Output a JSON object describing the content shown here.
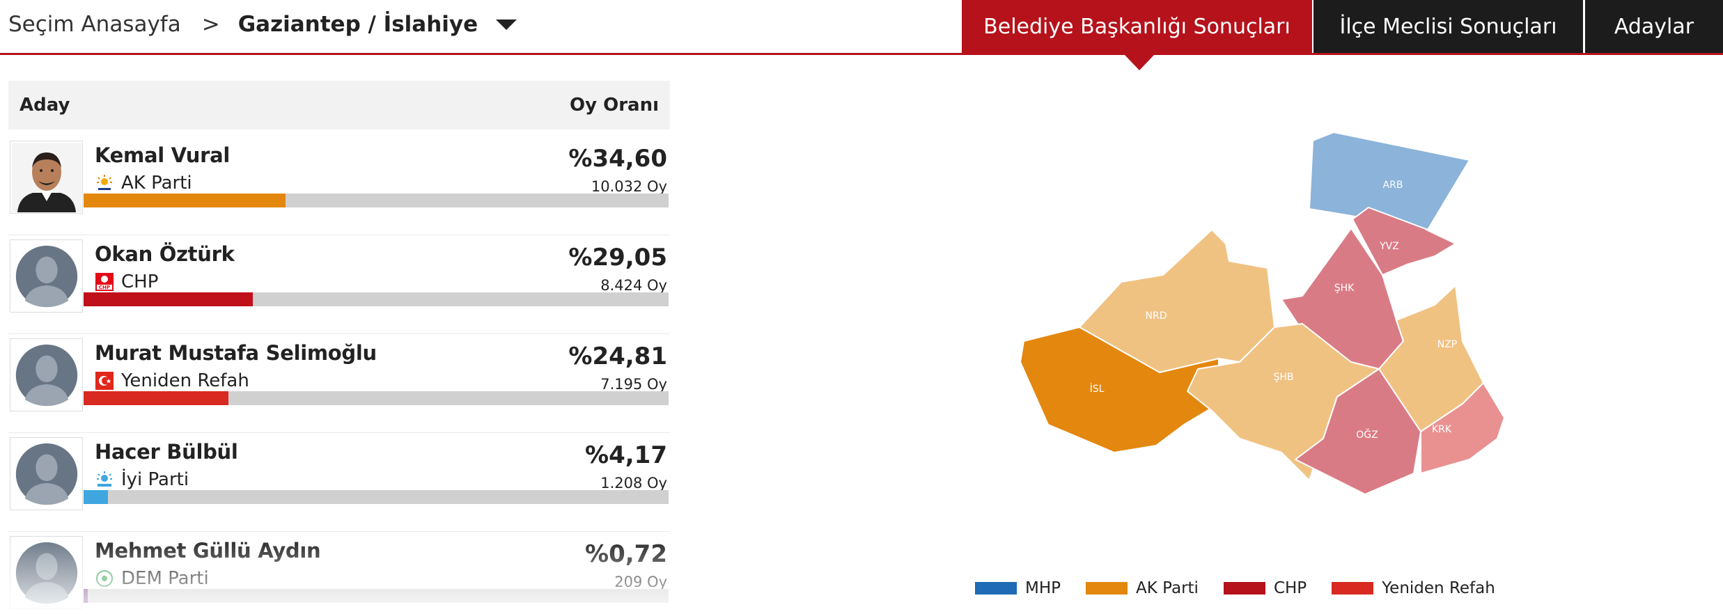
{
  "header": {
    "breadcrumb_home": "Seçim Anasayfa",
    "breadcrumb_sep": ">",
    "breadcrumb_current": "Gaziantep / İslahiye",
    "tabs": [
      {
        "label": "Belediye Başkanlığı Sonuçları",
        "active": true
      },
      {
        "label": "İlçe Meclisi Sonuçları",
        "active": false
      },
      {
        "label": "Adaylar",
        "active": false
      }
    ]
  },
  "table": {
    "col_name": "Aday",
    "col_rate": "Oy Oranı",
    "candidates": [
      {
        "name": "Kemal Vural",
        "party": "AK Parti",
        "percent": "%34,60",
        "votes": "10.032 Oy",
        "share": 34.6,
        "color": "#e3870e",
        "photo": "person-photo"
      },
      {
        "name": "Okan Öztürk",
        "party": "CHP",
        "percent": "%29,05",
        "votes": "8.424 Oy",
        "share": 29.05,
        "color": "#c0101a",
        "photo": "default-avatar"
      },
      {
        "name": "Murat Mustafa Selimoğlu",
        "party": "Yeniden Refah",
        "percent": "%24,81",
        "votes": "7.195 Oy",
        "share": 24.81,
        "color": "#d82a20",
        "photo": "default-avatar"
      },
      {
        "name": "Hacer Bülbül",
        "party": "İyi Parti",
        "percent": "%4,17",
        "votes": "1.208 Oy",
        "share": 4.17,
        "color": "#3fa6e0",
        "photo": "default-avatar"
      },
      {
        "name": "Mehmet Güllü Aydın",
        "party": "DEM Parti",
        "percent": "%0,72",
        "votes": "209 Oy",
        "share": 0.72,
        "color": "#7a3d8c",
        "photo": "default-avatar"
      }
    ]
  },
  "map": {
    "regions": [
      {
        "code": "ARB",
        "color": "#8cb3d9"
      },
      {
        "code": "YVZ",
        "color": "#d97b85"
      },
      {
        "code": "ŞHK",
        "color": "#d97b85"
      },
      {
        "code": "NRD",
        "color": "#f0c282"
      },
      {
        "code": "İSL",
        "color": "#e3870e"
      },
      {
        "code": "ŞHB",
        "color": "#f0c282"
      },
      {
        "code": "NZP",
        "color": "#d97b85"
      },
      {
        "code": "OĞZ",
        "color": "#e99191"
      },
      {
        "code": "KRK",
        "color": "#d97b85"
      }
    ]
  },
  "legend": [
    {
      "label": "MHP",
      "color": "#1f6bb5"
    },
    {
      "label": "AK Parti",
      "color": "#e3870e"
    },
    {
      "label": "CHP",
      "color": "#b5121b"
    },
    {
      "label": "Yeniden Refah",
      "color": "#d82a20"
    }
  ]
}
